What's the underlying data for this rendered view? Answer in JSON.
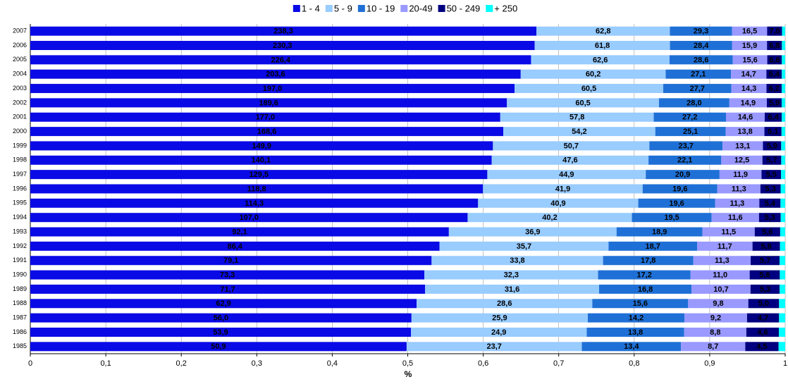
{
  "chart_data": {
    "type": "bar",
    "orientation": "horizontal",
    "stacked": "percent",
    "xlabel": "%",
    "categories": [
      "2007",
      "2006",
      "2005",
      "2004",
      "2003",
      "2002",
      "2001",
      "2000",
      "1999",
      "1998",
      "1997",
      "1996",
      "1995",
      "1994",
      "1993",
      "1992",
      "1991",
      "1990",
      "1989",
      "1988",
      "1987",
      "1986",
      "1985"
    ],
    "series": [
      {
        "name": "1 - 4",
        "color": "#0a0ae6",
        "values": [
          238.3,
          230.3,
          226.4,
          203.6,
          197.0,
          189.6,
          177.0,
          168.6,
          149.9,
          140.1,
          129.5,
          118.8,
          114.3,
          107.0,
          92.1,
          86.4,
          79.1,
          73.3,
          71.7,
          62.9,
          56.0,
          53.9,
          50.9
        ],
        "value_labels": [
          "238,3",
          "230,3",
          "226,4",
          "203,6",
          "197,0",
          "189,6",
          "177,0",
          "168,6",
          "149,9",
          "140,1",
          "129,5",
          "118,8",
          "114,3",
          "107,0",
          "92,1",
          "86,4",
          "79,1",
          "73,3",
          "71,7",
          "62,9",
          "56,0",
          "53,9",
          "50,9"
        ]
      },
      {
        "name": "5 - 9",
        "color": "#99ccff",
        "values": [
          62.8,
          61.8,
          62.6,
          60.2,
          60.5,
          60.5,
          57.8,
          54.2,
          50.7,
          47.6,
          44.9,
          41.9,
          40.9,
          40.2,
          36.9,
          35.7,
          33.8,
          32.3,
          31.6,
          28.6,
          25.9,
          24.9,
          23.7
        ],
        "value_labels": [
          "62,8",
          "61,8",
          "62,6",
          "60,2",
          "60,5",
          "60,5",
          "57,8",
          "54,2",
          "50,7",
          "47,6",
          "44,9",
          "41,9",
          "40,9",
          "40,2",
          "36,9",
          "35,7",
          "33,8",
          "32,3",
          "31,6",
          "28,6",
          "25,9",
          "24,9",
          "23,7"
        ]
      },
      {
        "name": "10 - 19",
        "color": "#1f70d6",
        "values": [
          29.3,
          28.4,
          28.6,
          27.1,
          27.7,
          28.0,
          27.2,
          25.1,
          23.7,
          22.1,
          20.9,
          19.6,
          19.6,
          19.5,
          18.9,
          18.7,
          17.8,
          17.2,
          16.8,
          15.6,
          14.2,
          13.8,
          13.4
        ],
        "value_labels": [
          "29,3",
          "28,4",
          "28,6",
          "27,1",
          "27,7",
          "28,0",
          "27,2",
          "25,1",
          "23,7",
          "22,1",
          "20,9",
          "19,6",
          "19,6",
          "19,5",
          "18,9",
          "18,7",
          "17,8",
          "17,2",
          "16,8",
          "15,6",
          "14,2",
          "13,8",
          "13,4"
        ]
      },
      {
        "name": "20-49",
        "color": "#9999ff",
        "values": [
          16.5,
          15.9,
          15.6,
          14.7,
          14.3,
          14.9,
          14.6,
          13.8,
          13.1,
          12.5,
          11.9,
          11.3,
          11.3,
          11.6,
          11.5,
          11.7,
          11.3,
          11.0,
          10.7,
          9.8,
          9.2,
          8.8,
          8.7
        ],
        "value_labels": [
          "16,5",
          "15,9",
          "15,6",
          "14,7",
          "14,3",
          "14,9",
          "14,6",
          "13,8",
          "13,1",
          "12,5",
          "11,9",
          "11,3",
          "11,3",
          "11,6",
          "11,5",
          "11,7",
          "11,3",
          "11,0",
          "10,7",
          "9,8",
          "9,2",
          "8,8",
          "8,7"
        ]
      },
      {
        "name": "50 - 249",
        "color": "#000080",
        "values": [
          7.0,
          6.8,
          6.6,
          6.4,
          6.2,
          5.9,
          6.4,
          6.1,
          5.9,
          5.7,
          5.5,
          5.3,
          5.4,
          5.3,
          5.6,
          5.8,
          5.7,
          5.6,
          5.3,
          5.0,
          4.7,
          4.6,
          4.5
        ],
        "value_labels": [
          "7,0",
          "6,8",
          "6,6",
          "6,4",
          "6,2",
          "5,9",
          "6,4",
          "6,1",
          "5,9",
          "5,7",
          "5,5",
          "5,3",
          "5,4",
          "5,3",
          "5,6",
          "5,8",
          "5,7",
          "5,6",
          "5,3",
          "5,0",
          "4,7",
          "4,6",
          "4,5"
        ]
      },
      {
        "name": "+ 250",
        "color": "#00ffff",
        "values": [
          1.5,
          1.5,
          1.5,
          1.4,
          1.4,
          1.4,
          1.3,
          1.3,
          1.3,
          1.2,
          1.2,
          1.2,
          1.2,
          1.1,
          1.1,
          1.1,
          1.1,
          1.0,
          1.0,
          1.0,
          0.9,
          0.9,
          0.9
        ]
      }
    ],
    "xlim": [
      0,
      1
    ],
    "xticks": [
      0,
      {
        "value": 0.1,
        "label": "0,1"
      },
      {
        "value": 0.2,
        "label": "0,2"
      },
      {
        "value": 0.3,
        "label": "0,3"
      },
      {
        "value": 0.4,
        "label": "0,4"
      },
      {
        "value": 0.5,
        "label": "0,5"
      },
      {
        "value": 0.6,
        "label": "0,6"
      },
      {
        "value": 0.7,
        "label": "0,7"
      },
      {
        "value": 0.8,
        "label": "0,8"
      },
      {
        "value": 0.9,
        "label": "0,9"
      },
      1
    ],
    "grid": true,
    "legend": "top"
  }
}
